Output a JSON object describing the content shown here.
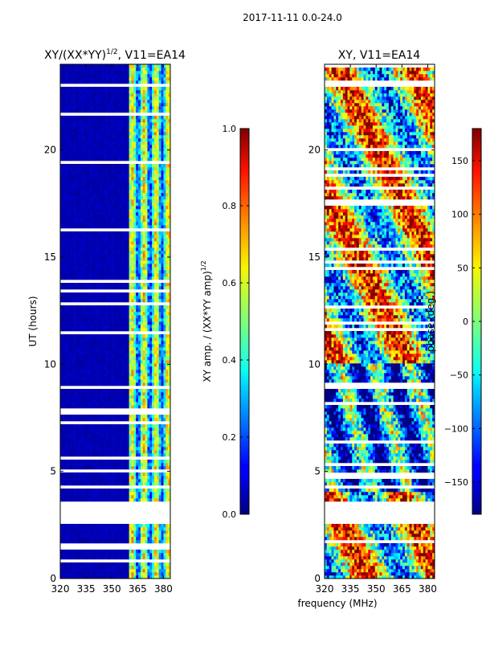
{
  "figure": {
    "suptitle": "2017-11-11 0.0-24.0",
    "shared_xlabel": "frequency (MHz)"
  },
  "chart_data": [
    {
      "type": "heatmap",
      "title": "XY/(XX*YY)",
      "title_superscript": "1/2",
      "title_suffix": ", V11=EA14",
      "xlabel": "",
      "ylabel": "UT (hours)",
      "xlim": [
        320,
        384
      ],
      "ylim": [
        0,
        24
      ],
      "xticks": [
        320,
        335,
        350,
        365,
        380
      ],
      "xtick_labels": [
        "320",
        "335",
        "350",
        "365",
        "380"
      ],
      "yticks": [
        0,
        5,
        10,
        15,
        20
      ],
      "ytick_labels": [
        "0",
        "5",
        "10",
        "15",
        "20"
      ],
      "description_value_range": [
        0.0,
        1.0
      ],
      "colorbar": {
        "label": "XY amp. / (XX*YY amp)",
        "label_superscript": "1/2",
        "vmin": 0.0,
        "vmax": 1.0,
        "ticks": [
          0.0,
          0.2,
          0.4,
          0.6,
          0.8,
          1.0
        ],
        "tick_labels": [
          "0.0",
          "0.2",
          "0.4",
          "0.6",
          "0.8",
          "1.0"
        ],
        "colormap": "jet"
      },
      "features": {
        "low_band_value": 0.02,
        "high_band_start_mhz": 360,
        "high_band_value_range": [
          0.3,
          0.75
        ],
        "flagged_gap_hours": [
          2.6,
          3.6
        ]
      }
    },
    {
      "type": "heatmap",
      "title": "XY, V11=EA14",
      "xlabel": "frequency (MHz)",
      "ylabel": "",
      "xlim": [
        320,
        384
      ],
      "ylim": [
        0,
        24
      ],
      "xticks": [
        320,
        335,
        350,
        365,
        380
      ],
      "xtick_labels": [
        "320",
        "335",
        "350",
        "365",
        "380"
      ],
      "yticks": [
        0,
        5,
        10,
        15,
        20
      ],
      "ytick_labels": [
        "0",
        "5",
        "10",
        "15",
        "20"
      ],
      "colorbar": {
        "label": "phase (deg.)",
        "vmin": -180,
        "vmax": 180,
        "ticks": [
          -150,
          -100,
          -50,
          0,
          50,
          100,
          150
        ],
        "tick_labels": [
          "−150",
          "−100",
          "−50",
          "0",
          "50",
          "100",
          "150"
        ],
        "colormap": "jet"
      },
      "features": {
        "phase_range_deg": [
          -180,
          180
        ],
        "flagged_gap_hours": [
          2.6,
          3.6
        ]
      }
    }
  ]
}
